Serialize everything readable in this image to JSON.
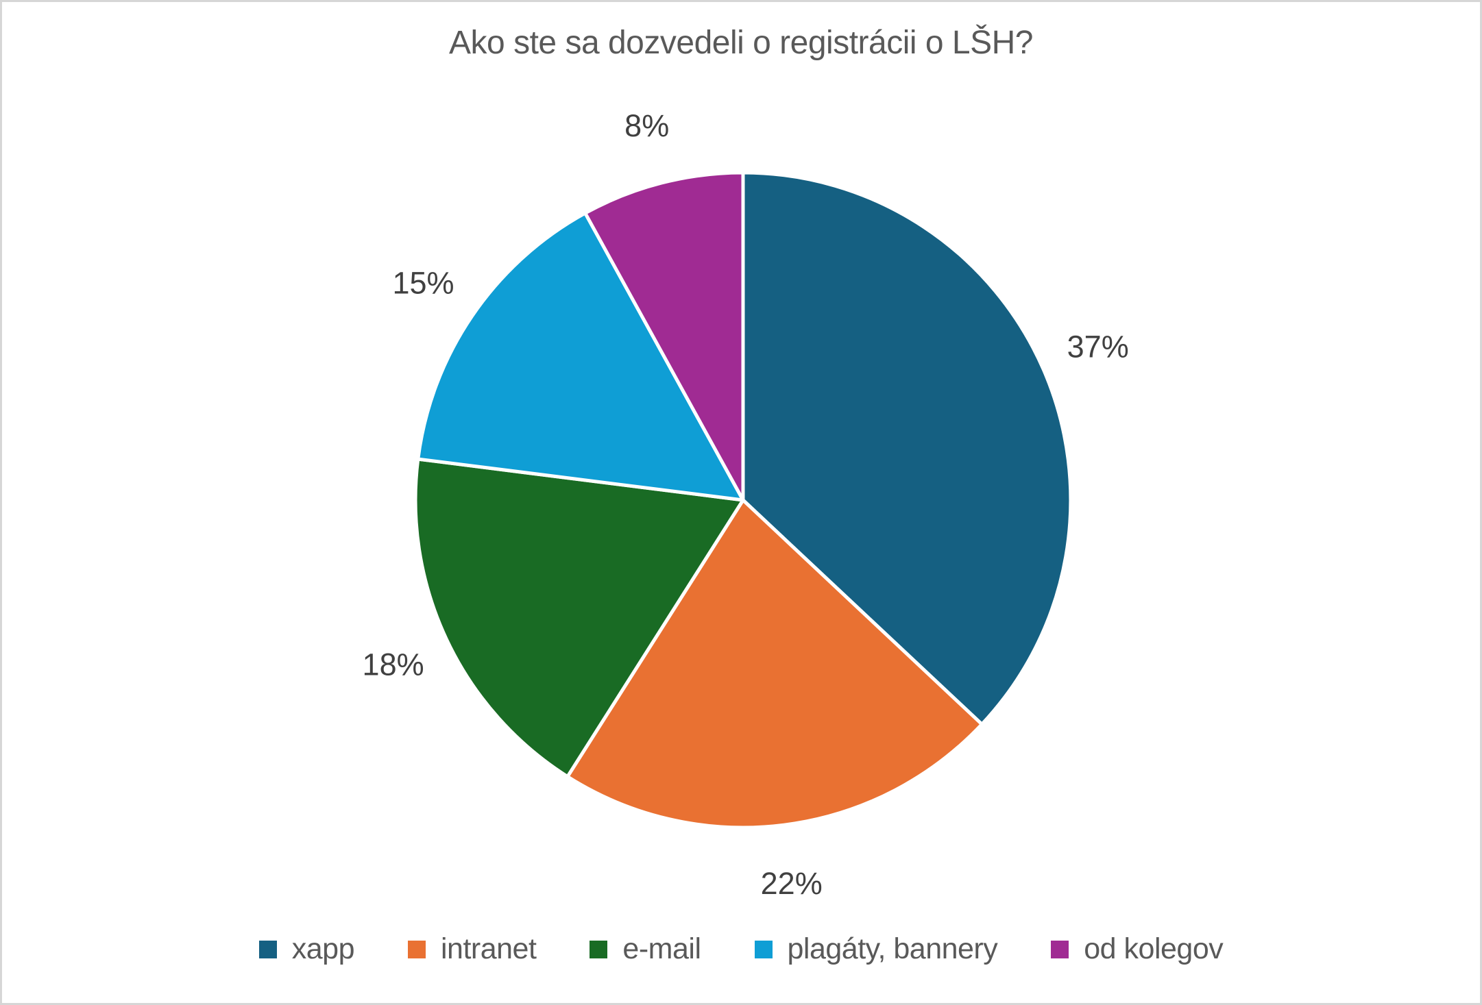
{
  "frame": {
    "background_color": "#FFFFFF",
    "border_color": "#D6D6D6"
  },
  "chart_data": {
    "type": "pie",
    "title": "Ako ste sa dozvedeli o registrácii o LŠH?",
    "categories": [
      "xapp",
      "intranet",
      "e-mail",
      "plagáty, bannery",
      "od kolegov"
    ],
    "values": [
      37,
      22,
      18,
      15,
      8
    ],
    "data_labels": [
      "37%",
      "22%",
      "18%",
      "15%",
      "8%"
    ],
    "unit": "%",
    "colors": [
      "#156082",
      "#E97132",
      "#196B24",
      "#0F9ED5",
      "#A02B93"
    ],
    "start_angle_deg": 0,
    "direction": "clockwise",
    "slice_border_color": "#FFFFFF",
    "legend_position": "bottom",
    "title_color": "#595959",
    "data_label_color": "#404040",
    "legend_text_color": "#595959"
  }
}
